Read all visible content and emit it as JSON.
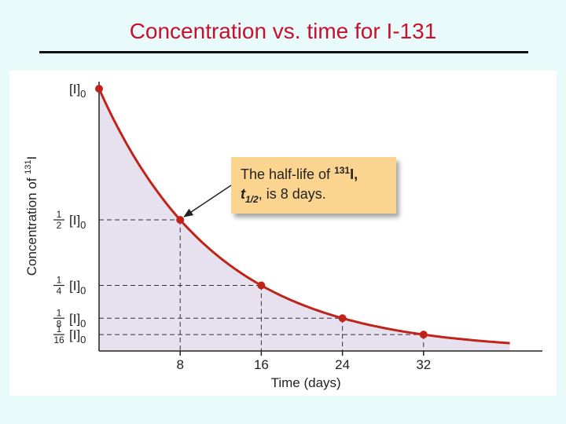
{
  "slide": {
    "title": "Concentration vs. time for I-131"
  },
  "chart_data": {
    "type": "line",
    "xlabel": "Time (days)",
    "ylabel_prefix": "Concentration of ",
    "ylabel_isotope_mass": "131",
    "ylabel_element": "I",
    "x_ticks": [
      8,
      16,
      24,
      32
    ],
    "xlim": [
      0,
      40.5
    ],
    "ylim": [
      0,
      1
    ],
    "series": [
      {
        "color": "#c0231a",
        "fill_color": "#e6e0ef",
        "points": [
          {
            "x": 0,
            "y": 1
          },
          {
            "x": 8,
            "y": 0.5
          },
          {
            "x": 16,
            "y": 0.25
          },
          {
            "x": 24,
            "y": 0.125
          },
          {
            "x": 32,
            "y": 0.0625
          }
        ],
        "curve_end_x": 40.5,
        "half_life_days": 8
      }
    ],
    "y_labels": [
      {
        "y": 1,
        "numerator": "",
        "denominator": "",
        "symbol": "[I]",
        "subscript": "0"
      },
      {
        "y": 0.5,
        "numerator": "1",
        "denominator": "2",
        "symbol": "[I]",
        "subscript": "0"
      },
      {
        "y": 0.25,
        "numerator": "1",
        "denominator": "4",
        "symbol": "[I]",
        "subscript": "0"
      },
      {
        "y": 0.125,
        "numerator": "1",
        "denominator": "8",
        "symbol": "[I]",
        "subscript": "0"
      },
      {
        "y": 0.0625,
        "numerator": "1",
        "denominator": "16",
        "symbol": "[I]",
        "subscript": "0"
      }
    ],
    "annotation": {
      "line1_prefix": "The half-life of ",
      "line1_mass": "131",
      "line1_element": "I,",
      "line2_symbol": "t",
      "line2_subscript": "1/2",
      "line2_rest": ", is 8 days.",
      "points_to_x": 8,
      "box_color": "#fbd48f"
    }
  }
}
